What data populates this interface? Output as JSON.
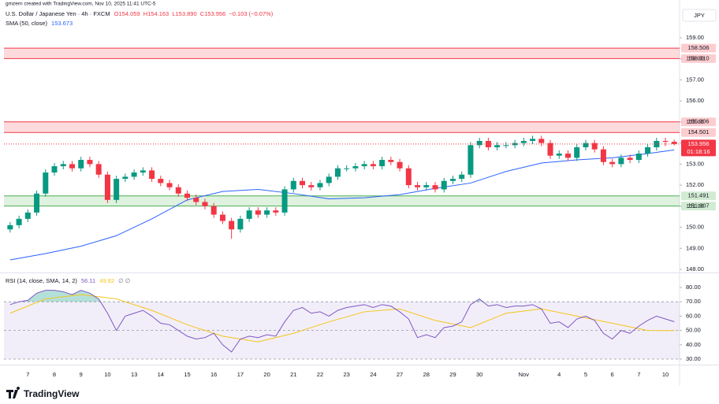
{
  "chart_data": {
    "type": "candlestick",
    "attribution": "gmzern created with TradingView.com, Nov 10, 2025 11:41 UTC-5",
    "title": "U.S. Dollar / Japanese Yen · 4h · FXCM",
    "legend_values": [
      "O154.059",
      "H154.163",
      "L153.890",
      "C153.956",
      "−0.103 (−0.07%)"
    ],
    "currency": "JPY",
    "countdown": "01:18:16",
    "logo": "TradingView",
    "up_color": "#089981",
    "down_color": "#f23645",
    "grid": false,
    "xlim": [
      -0.7,
      75.6
    ],
    "xticks": [
      {
        "value": 2,
        "label": "7"
      },
      {
        "value": 5,
        "label": "8"
      },
      {
        "value": 8,
        "label": "9"
      },
      {
        "value": 11,
        "label": "10"
      },
      {
        "value": 14,
        "label": "13"
      },
      {
        "value": 17,
        "label": "14"
      },
      {
        "value": 20,
        "label": "15"
      },
      {
        "value": 23,
        "label": "16"
      },
      {
        "value": 26,
        "label": "17"
      },
      {
        "value": 29,
        "label": "20"
      },
      {
        "value": 32,
        "label": "21"
      },
      {
        "value": 35,
        "label": "22"
      },
      {
        "value": 38,
        "label": "23"
      },
      {
        "value": 41,
        "label": "24"
      },
      {
        "value": 44,
        "label": "27"
      },
      {
        "value": 47,
        "label": "28"
      },
      {
        "value": 50,
        "label": "29"
      },
      {
        "value": 53,
        "label": "30"
      },
      {
        "value": 58,
        "label": "Nov"
      },
      {
        "value": 62,
        "label": "4"
      },
      {
        "value": 65,
        "label": "5"
      },
      {
        "value": 68,
        "label": "6"
      },
      {
        "value": 71,
        "label": "7"
      },
      {
        "value": 74,
        "label": "10"
      }
    ],
    "ylim": [
      147.89,
      160.42
    ],
    "yticks": [
      {
        "value": 148,
        "label": "148.00"
      },
      {
        "value": 149,
        "label": "149.00"
      },
      {
        "value": 150,
        "label": "150.00"
      },
      {
        "value": 151,
        "label": "151.00"
      },
      {
        "value": 152,
        "label": "152.00"
      },
      {
        "value": 153,
        "label": "153.00"
      },
      {
        "value": 154,
        "label": "154.00"
      },
      {
        "value": 155,
        "label": "155.00"
      },
      {
        "value": 156,
        "label": "156.00"
      },
      {
        "value": 157,
        "label": "157.00"
      },
      {
        "value": 158,
        "label": "158.00"
      },
      {
        "value": 159,
        "label": "159.00"
      }
    ],
    "open": [
      149.9,
      150.1,
      150.4,
      150.7,
      151.6,
      152.6,
      152.9,
      153.0,
      152.8,
      153.2,
      153.0,
      152.5,
      151.3,
      152.3,
      152.4,
      152.6,
      152.7,
      152.3,
      152.1,
      151.9,
      151.6,
      151.4,
      151.2,
      151.0,
      150.6,
      150.3,
      149.9,
      150.4,
      150.8,
      150.6,
      150.8,
      150.7,
      151.8,
      152.2,
      152.0,
      151.9,
      152.1,
      152.4,
      152.8,
      152.8,
      152.9,
      153.0,
      152.9,
      153.2,
      153.1,
      152.8,
      152.0,
      151.9,
      152.0,
      151.8,
      152.2,
      152.3,
      152.5,
      153.9,
      154.1,
      153.8,
      153.9,
      153.9,
      154.0,
      154.1,
      154.2,
      154.0,
      153.4,
      153.5,
      153.3,
      153.8,
      154.0,
      153.7,
      153.1,
      153.0,
      153.3,
      153.2,
      153.5,
      153.8,
      154.1,
      154.059
    ],
    "high": [
      150.25,
      150.55,
      150.85,
      151.75,
      152.75,
      153.05,
      153.15,
      153.15,
      153.35,
      153.35,
      153.15,
      152.65,
      152.45,
      152.55,
      152.75,
      152.85,
      152.85,
      152.45,
      152.25,
      152.05,
      151.75,
      151.55,
      151.35,
      151.15,
      150.75,
      150.45,
      150.55,
      150.95,
      150.95,
      150.95,
      150.95,
      151.95,
      152.35,
      152.35,
      152.15,
      152.25,
      152.55,
      152.95,
      152.95,
      153.05,
      153.15,
      153.15,
      153.35,
      153.35,
      153.25,
      152.95,
      152.15,
      152.15,
      152.15,
      152.35,
      152.45,
      152.65,
      154.05,
      154.25,
      154.25,
      154.05,
      154.05,
      154.15,
      154.25,
      154.35,
      154.35,
      154.15,
      153.65,
      153.65,
      153.95,
      154.15,
      154.15,
      153.85,
      153.25,
      153.45,
      153.45,
      153.65,
      153.95,
      154.25,
      154.25,
      154.163
    ],
    "low": [
      149.75,
      149.95,
      150.25,
      150.55,
      151.45,
      152.45,
      152.75,
      152.65,
      152.65,
      152.85,
      152.35,
      151.15,
      151.15,
      152.15,
      152.25,
      152.45,
      152.15,
      151.95,
      151.75,
      151.45,
      151.25,
      151.05,
      150.85,
      150.45,
      150.15,
      149.45,
      149.75,
      150.25,
      150.45,
      150.45,
      150.55,
      150.55,
      151.65,
      151.85,
      151.75,
      151.75,
      151.95,
      152.25,
      152.65,
      152.65,
      152.75,
      152.75,
      152.75,
      152.95,
      152.65,
      151.85,
      151.75,
      151.75,
      151.65,
      151.65,
      152.05,
      152.15,
      152.35,
      153.75,
      153.65,
      153.65,
      153.75,
      153.75,
      153.85,
      153.95,
      153.85,
      153.25,
      153.25,
      153.15,
      153.15,
      153.65,
      153.55,
      152.95,
      152.85,
      152.85,
      153.05,
      153.05,
      153.35,
      153.65,
      153.85,
      153.89
    ],
    "close": [
      150.1,
      150.4,
      150.7,
      151.6,
      152.6,
      152.9,
      153.0,
      152.8,
      153.2,
      153.0,
      152.5,
      151.3,
      152.3,
      152.4,
      152.6,
      152.7,
      152.3,
      152.1,
      151.9,
      151.6,
      151.4,
      151.2,
      151.0,
      150.6,
      150.3,
      149.9,
      150.4,
      150.8,
      150.6,
      150.8,
      150.7,
      151.8,
      152.2,
      152.0,
      151.9,
      152.1,
      152.4,
      152.8,
      152.8,
      152.9,
      153.0,
      152.9,
      153.2,
      153.1,
      152.8,
      152.0,
      151.9,
      152.0,
      151.8,
      152.2,
      152.3,
      152.5,
      153.9,
      154.1,
      153.8,
      153.9,
      153.9,
      154.0,
      154.1,
      154.2,
      154.0,
      153.4,
      153.5,
      153.3,
      153.8,
      154.0,
      153.7,
      153.1,
      153.0,
      153.3,
      153.2,
      153.5,
      153.8,
      154.1,
      154.059,
      153.956
    ],
    "zones": [
      {
        "high": 158.506,
        "low": {
          "value": 158.01,
          "label": "158.010"
        },
        "color": "#f23645"
      },
      {
        "high": {
          "value": 155.006,
          "label": "155.006"
        },
        "low": 154.501,
        "color": "#f23645"
      },
      {
        "high": 151.491,
        "low": 151.007,
        "color": "#4caf50"
      }
    ],
    "series": [
      {
        "name": "SMA (50, close)",
        "value_label": "153.673",
        "color": "#2962ff",
        "x": [
          0,
          4,
          8,
          12,
          16,
          20,
          24,
          28,
          32,
          36,
          40,
          44,
          48,
          52,
          56,
          60,
          64,
          68,
          72,
          75
        ],
        "values": [
          148.45,
          148.75,
          149.1,
          149.6,
          150.4,
          151.3,
          151.7,
          151.8,
          151.6,
          151.35,
          151.4,
          151.55,
          151.85,
          152.1,
          152.65,
          153.05,
          153.2,
          153.3,
          153.5,
          153.673
        ]
      }
    ],
    "rsi": {
      "name": "RSI (14, close, SMA, 14, 2)",
      "extra": "∅ ∅",
      "color": "#7e57c2",
      "band_color": "#7e57c2",
      "overbought_color": "#089981",
      "ylim": [
        26.7,
        88.24
      ],
      "yticks": [
        {
          "value": 30,
          "label": "30.00"
        },
        {
          "value": 40,
          "label": "40.00"
        },
        {
          "value": 50,
          "label": "50.00"
        },
        {
          "value": 60,
          "label": "60.00"
        },
        {
          "value": 70,
          "label": "70.00"
        },
        {
          "value": 80,
          "label": "80.00"
        }
      ],
      "bands": [
        70,
        50,
        30
      ],
      "values": [
        68,
        70,
        71,
        76,
        78,
        78,
        77,
        75,
        78,
        76,
        72,
        62,
        50,
        60,
        62,
        64,
        60,
        55,
        54,
        50,
        46,
        44,
        45,
        48,
        40,
        35,
        44,
        46,
        45,
        47,
        46,
        56,
        64,
        66,
        62,
        63,
        60,
        64,
        66,
        67,
        68,
        66,
        68,
        67,
        63,
        58,
        45,
        47,
        45,
        52,
        53,
        56,
        68,
        72,
        67,
        68,
        66,
        67,
        67,
        68,
        65,
        55,
        56,
        52,
        58,
        60,
        57,
        48,
        44,
        50,
        48,
        53,
        57,
        60,
        58,
        56.11
      ],
      "ma": {
        "color": "#f5c518",
        "x": [
          0,
          4,
          8,
          12,
          16,
          20,
          24,
          28,
          32,
          36,
          40,
          44,
          48,
          52,
          56,
          60,
          64,
          68,
          72,
          75
        ],
        "values": [
          62,
          72,
          75,
          72,
          64,
          54,
          46,
          42,
          48,
          56,
          63,
          65,
          57,
          52,
          62,
          65,
          60,
          55,
          50,
          49.82
        ]
      }
    }
  }
}
